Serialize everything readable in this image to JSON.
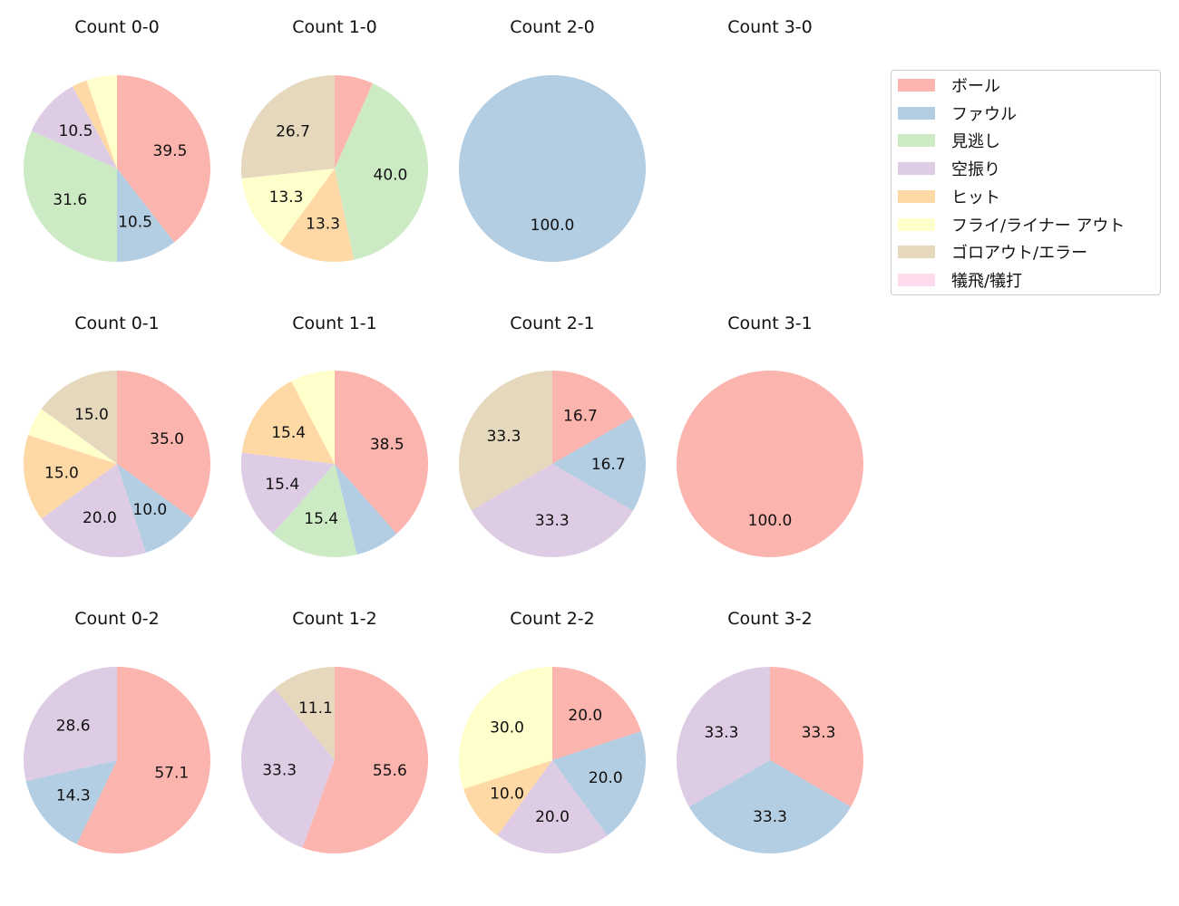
{
  "chart_data": {
    "type": "pie",
    "categories": [
      "ボール",
      "ファウル",
      "見逃し",
      "空振り",
      "ヒット",
      "フライ/ライナー アウト",
      "ゴロアウト/エラー",
      "犠飛/犠打"
    ],
    "colors": [
      "#fbb4ae",
      "#b3cde3",
      "#ccebc5",
      "#decbe4",
      "#fed9a6",
      "#ffffcc",
      "#e5d8bd",
      "#fddaec"
    ],
    "legend_position": "upper-right",
    "charts": [
      {
        "title": "Count 0-0",
        "values": [
          39.5,
          10.5,
          31.6,
          10.5,
          2.6,
          5.3,
          0,
          0
        ]
      },
      {
        "title": "Count 1-0",
        "values": [
          6.7,
          0,
          40.0,
          0,
          13.3,
          13.3,
          26.7,
          0
        ]
      },
      {
        "title": "Count 2-0",
        "values": [
          0,
          100.0,
          0,
          0,
          0,
          0,
          0,
          0
        ]
      },
      {
        "title": "Count 3-0",
        "values": []
      },
      {
        "title": "Count 0-1",
        "values": [
          35.0,
          10.0,
          0,
          20.0,
          15.0,
          5.0,
          15.0,
          0
        ]
      },
      {
        "title": "Count 1-1",
        "values": [
          38.5,
          7.7,
          15.4,
          15.4,
          15.4,
          7.7,
          0,
          0
        ]
      },
      {
        "title": "Count 2-1",
        "values": [
          16.7,
          16.7,
          0,
          33.3,
          0,
          0,
          33.3,
          0
        ]
      },
      {
        "title": "Count 3-1",
        "values": [
          100.0,
          0,
          0,
          0,
          0,
          0,
          0,
          0
        ]
      },
      {
        "title": "Count 0-2",
        "values": [
          57.1,
          14.3,
          0,
          28.6,
          0,
          0,
          0,
          0
        ]
      },
      {
        "title": "Count 1-2",
        "values": [
          55.6,
          0,
          0,
          33.3,
          0,
          0,
          11.1,
          0
        ]
      },
      {
        "title": "Count 2-2",
        "values": [
          20.0,
          20.0,
          0,
          20.0,
          10.0,
          30.0,
          0,
          0
        ]
      },
      {
        "title": "Count 3-2",
        "values": [
          33.3,
          33.3,
          0,
          33.3,
          0,
          0,
          0,
          0
        ]
      }
    ]
  }
}
